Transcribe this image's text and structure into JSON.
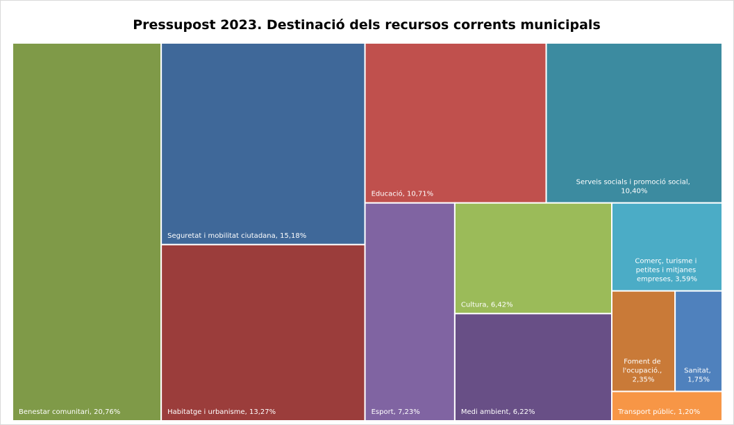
{
  "chart_data": {
    "type": "treemap",
    "title": "Pressupost 2023. Destinació dels recursos corrents municipals",
    "values": [
      20.76,
      15.18,
      13.27,
      10.71,
      10.4,
      7.23,
      6.42,
      6.22,
      3.59,
      2.35,
      1.75,
      1.2
    ],
    "value_labels": [
      "Benestar comunitari, 20,76%",
      "Seguretat i mobilitat ciutadana, 15,18%",
      "Habitatge i urbanisme, 13,27%",
      "Educació, 10,71%",
      "Serveis socials i promoció social, 10,40%",
      "Esport, 7,23%",
      "Cultura, 6,42%",
      "Medi ambient, 6,22%",
      "Comerç, turisme i petites i mitjanes empreses, 3,59%",
      "Foment de l'ocupació., 2,35%",
      "Sanitat, 1,75%",
      "Transport públic, 1,20%"
    ],
    "colors": [
      "#7f9a48",
      "#3f6899",
      "#9b3d3b",
      "#c0504d",
      "#3c8ba0",
      "#8064a2",
      "#9bbb59",
      "#684f86",
      "#4bacc6",
      "#c97a38",
      "#4f81bd",
      "#f79646"
    ]
  }
}
